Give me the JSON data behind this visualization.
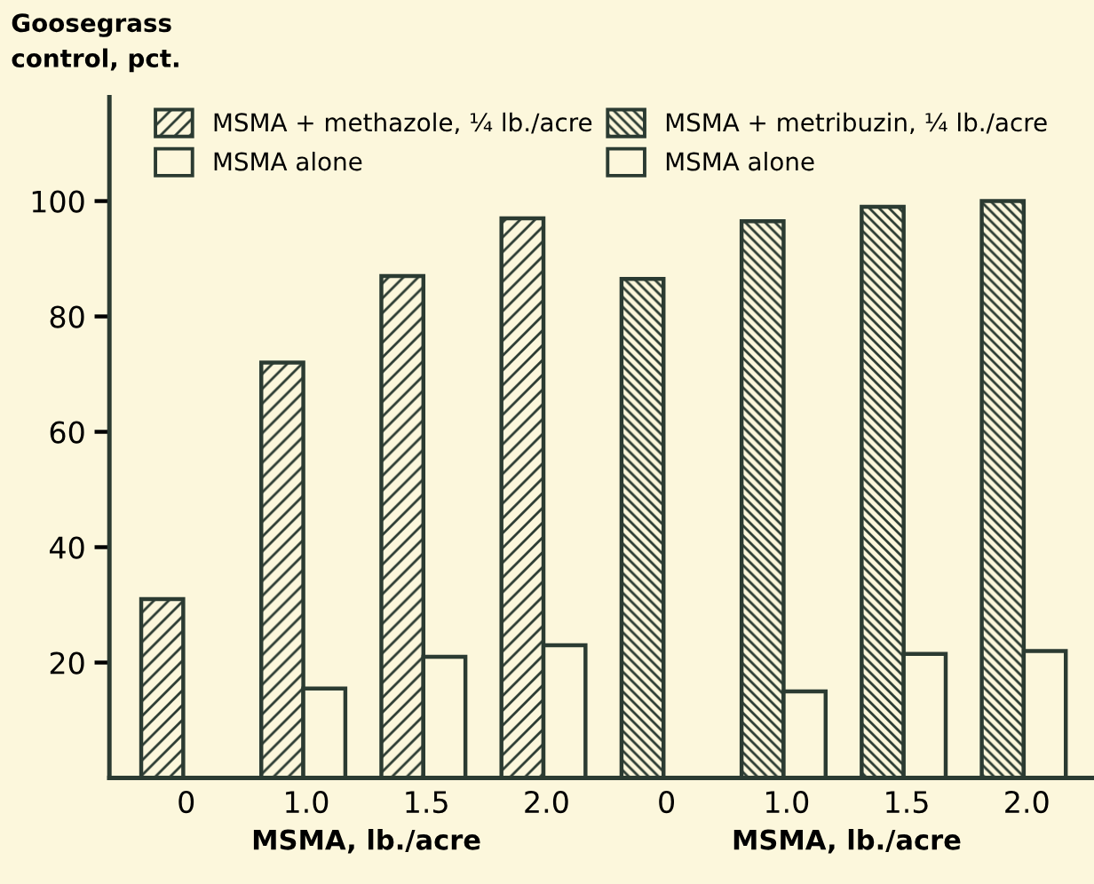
{
  "chart_data": {
    "type": "bar",
    "categories": [
      "0",
      "1.0",
      "1.5",
      "2.0",
      "0",
      "1.0",
      "1.5",
      "2.0"
    ],
    "series": [
      {
        "name": "MSMA + methazole, ¼ lb./acre",
        "color": "#2b3b32",
        "values": [
          31,
          72,
          87,
          97,
          null,
          null,
          null,
          null
        ]
      },
      {
        "name": "MSMA alone",
        "color": "#2b3b32",
        "values": [
          null,
          15.5,
          21,
          23,
          null,
          null,
          null,
          null
        ]
      },
      {
        "name": "MSMA + metribuzin, ¼ lb./acre",
        "color": "#2b3b32",
        "values": [
          null,
          null,
          null,
          null,
          86.5,
          96.5,
          99,
          100
        ]
      },
      {
        "name": "MSMA alone",
        "color": "#2b3b32",
        "values": [
          null,
          null,
          null,
          null,
          null,
          15,
          21.5,
          22
        ]
      }
    ],
    "xlabel": "MSMA, lb./acre",
    "ylabel": "Goosegrass\ncontrol, pct.",
    "annotations": [
      "MSMA, lb./acre"
    ],
    "ylim": [
      0,
      118
    ],
    "yticks": [
      20,
      40,
      60,
      80,
      100
    ],
    "legend": "top",
    "grid": false
  }
}
